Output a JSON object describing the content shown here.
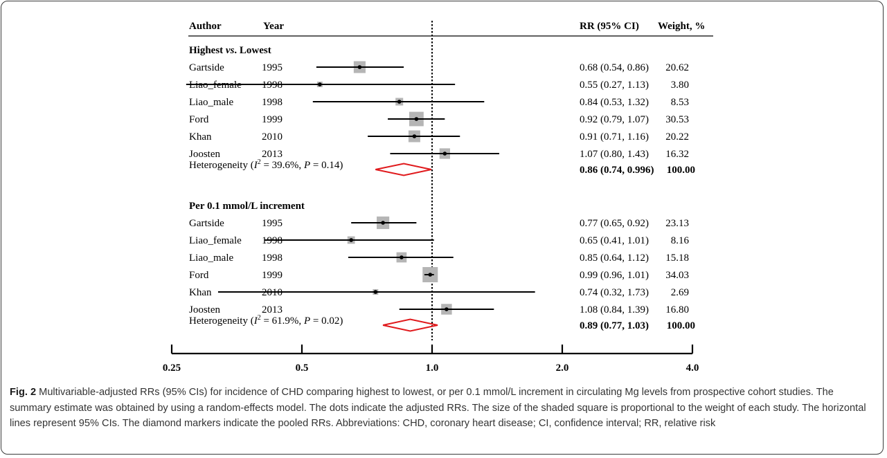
{
  "chart_data": {
    "type": "forest",
    "x_scale": "log",
    "x_ticks": [
      0.25,
      0.5,
      1.0,
      2.0,
      4.0
    ],
    "x_tick_labels": [
      "0.25",
      "0.5",
      "1.0",
      "2.0",
      "4.0"
    ],
    "reference_line": 1.0,
    "headers": {
      "author": "Author",
      "year": "Year",
      "rr": "RR (95% CI)",
      "weight": "Weight, %"
    },
    "groups": [
      {
        "title_parts": [
          "Highest ",
          "vs",
          ". Lowest"
        ],
        "studies": [
          {
            "author": "Gartside",
            "year": "1995",
            "rr": 0.68,
            "lo": 0.54,
            "hi": 0.86,
            "rr_text": "0.68 (0.54, 0.86)",
            "weight": 20.62,
            "weight_text": "20.62"
          },
          {
            "author": "Liao_female",
            "year": "1998",
            "rr": 0.55,
            "lo": 0.27,
            "hi": 1.13,
            "rr_text": "0.55 (0.27, 1.13)",
            "weight": 3.8,
            "weight_text": "3.80"
          },
          {
            "author": "Liao_male",
            "year": "1998",
            "rr": 0.84,
            "lo": 0.53,
            "hi": 1.32,
            "rr_text": "0.84 (0.53, 1.32)",
            "weight": 8.53,
            "weight_text": "8.53"
          },
          {
            "author": "Ford",
            "year": "1999",
            "rr": 0.92,
            "lo": 0.79,
            "hi": 1.07,
            "rr_text": "0.92 (0.79, 1.07)",
            "weight": 30.53,
            "weight_text": "30.53"
          },
          {
            "author": "Khan",
            "year": "2010",
            "rr": 0.91,
            "lo": 0.71,
            "hi": 1.16,
            "rr_text": "0.91 (0.71, 1.16)",
            "weight": 20.22,
            "weight_text": "20.22"
          },
          {
            "author": "Joosten",
            "year": "2013",
            "rr": 1.07,
            "lo": 0.8,
            "hi": 1.43,
            "rr_text": "1.07 (0.80, 1.43)",
            "weight": 16.32,
            "weight_text": "16.32"
          }
        ],
        "pooled": {
          "label_prefix": "Heterogeneity (",
          "i2_symbol": "I",
          "i2_sup": "2",
          "i2_value": " = 39.6%, ",
          "p_symbol": "P",
          "p_value": " = 0.14)",
          "rr": 0.86,
          "lo": 0.74,
          "hi": 0.996,
          "rr_text": "0.86 (0.74, 0.996)",
          "weight_text": "100.00"
        }
      },
      {
        "title_parts": [
          "Per 0.1 mmol/L increment",
          "",
          ""
        ],
        "studies": [
          {
            "author": "Gartside",
            "year": "1995",
            "rr": 0.77,
            "lo": 0.65,
            "hi": 0.92,
            "rr_text": "0.77 (0.65, 0.92)",
            "weight": 23.13,
            "weight_text": "23.13"
          },
          {
            "author": "Liao_female",
            "year": "1998",
            "rr": 0.65,
            "lo": 0.41,
            "hi": 1.01,
            "rr_text": "0.65 (0.41, 1.01)",
            "weight": 8.16,
            "weight_text": "8.16"
          },
          {
            "author": "Liao_male",
            "year": "1998",
            "rr": 0.85,
            "lo": 0.64,
            "hi": 1.12,
            "rr_text": "0.85 (0.64, 1.12)",
            "weight": 15.18,
            "weight_text": "15.18"
          },
          {
            "author": "Ford",
            "year": "1999",
            "rr": 0.99,
            "lo": 0.96,
            "hi": 1.01,
            "rr_text": "0.99 (0.96, 1.01)",
            "weight": 34.03,
            "weight_text": "34.03"
          },
          {
            "author": "Khan",
            "year": "2010",
            "rr": 0.74,
            "lo": 0.32,
            "hi": 1.73,
            "rr_text": "0.74 (0.32, 1.73)",
            "weight": 2.69,
            "weight_text": "2.69"
          },
          {
            "author": "Joosten",
            "year": "2013",
            "rr": 1.08,
            "lo": 0.84,
            "hi": 1.39,
            "rr_text": "1.08 (0.84, 1.39)",
            "weight": 16.8,
            "weight_text": "16.80"
          }
        ],
        "pooled": {
          "label_prefix": "Heterogeneity (",
          "i2_symbol": "I",
          "i2_sup": "2",
          "i2_value": " = 61.9%, ",
          "p_symbol": "P",
          "p_value": " = 0.02)",
          "rr": 0.89,
          "lo": 0.77,
          "hi": 1.03,
          "rr_text": "0.89 (0.77, 1.03)",
          "weight_text": "100.00"
        }
      }
    ],
    "colors": {
      "box": "#b5b5b5",
      "diamond": "#e0191c",
      "line": "#000000"
    }
  },
  "caption": {
    "label": "Fig. 2",
    "text": " Multivariable-adjusted RRs (95% CIs) for incidence of CHD comparing highest to lowest, or per 0.1 mmol/L increment in circulating Mg levels from prospective cohort studies. The summary estimate was obtained by using a random-effects model. The dots indicate the adjusted RRs. The size of the shaded square is proportional to the weight of each study. The horizontal lines represent 95% CIs. The diamond markers indicate the pooled RRs. Abbreviations: CHD, coronary heart disease; CI, confidence interval; RR, relative risk"
  }
}
